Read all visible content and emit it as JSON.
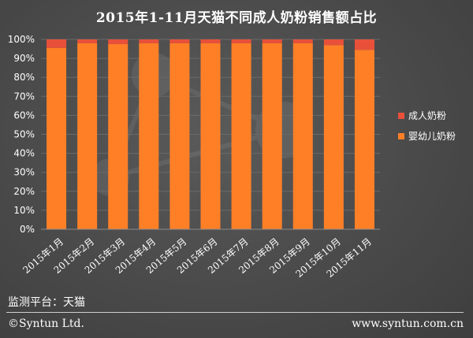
{
  "colors": {
    "adult": "#e8503a",
    "infant": "#ff7f27",
    "text": "#ffffff",
    "background": "#4a4a4a",
    "gridline": "#6a6a6a"
  },
  "footer": {
    "platform": "监测平台：天猫",
    "copyright": "©Syntun Ltd.",
    "website": "www.syntun.com.cn"
  },
  "chart_data": {
    "type": "bar",
    "stacked": true,
    "percent": true,
    "title": "2015年1-11月天猫不同成人奶粉销售额占比",
    "xlabel": "",
    "ylabel": "",
    "ylim": [
      0,
      100
    ],
    "yticks": [
      "0%",
      "10%",
      "20%",
      "30%",
      "40%",
      "50%",
      "60%",
      "70%",
      "80%",
      "90%",
      "100%"
    ],
    "categories": [
      "2015年1月",
      "2015年2月",
      "2015年3月",
      "2015年4月",
      "2015年5月",
      "2015年6月",
      "2015年7月",
      "2015年8月",
      "2015年9月",
      "2015年10月",
      "2015年11月"
    ],
    "series": [
      {
        "name": "婴幼儿奶粉",
        "color": "#ff7f27",
        "values": [
          95.5,
          98,
          97.5,
          98,
          98,
          98,
          98,
          98,
          98,
          97,
          94.5
        ]
      },
      {
        "name": "成人奶粉",
        "color": "#e8503a",
        "values": [
          4.5,
          2,
          2.5,
          2,
          2,
          2,
          2,
          2,
          2,
          3,
          5.5
        ]
      }
    ],
    "legend_order": [
      "成人奶粉",
      "婴幼儿奶粉"
    ],
    "legend_position": "right",
    "grid": true
  }
}
